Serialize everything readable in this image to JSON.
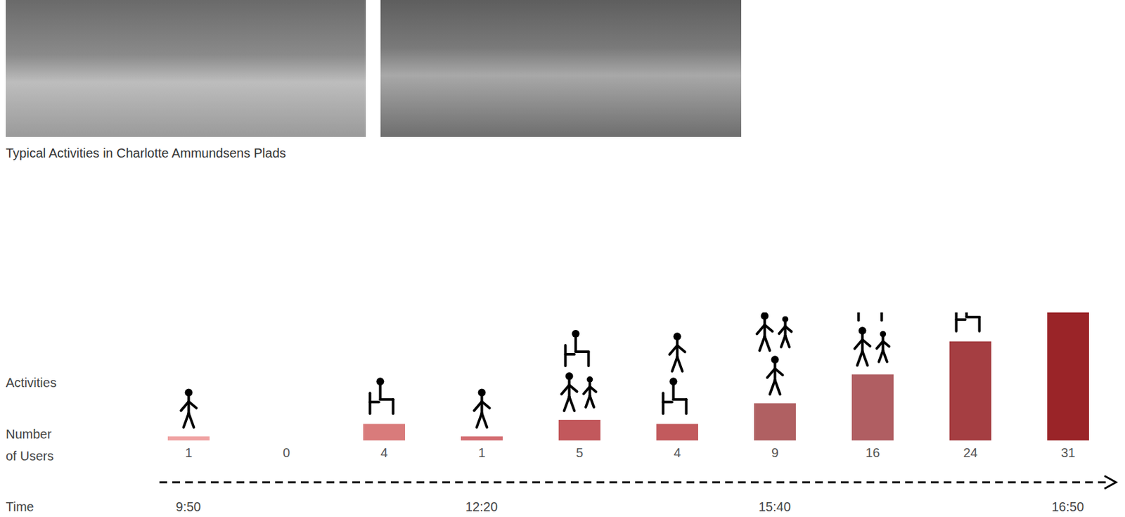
{
  "chart_data": {
    "type": "bar",
    "annotations": [
      "Typical Activities in Charlotte Ammundsens Plads",
      "Activities"
    ],
    "y_label": "Number of Users",
    "x_label": "Time",
    "categories": [
      "9:50",
      null,
      null,
      "12:20",
      null,
      null,
      "15:40",
      null,
      null,
      "16:50"
    ],
    "values": [
      1,
      0,
      4,
      1,
      5,
      4,
      9,
      16,
      24,
      31
    ],
    "colors": [
      "#f0a3a3",
      "#e08a8a",
      "#d97b7b",
      "#d46e72",
      "#c2585c",
      "#c25a5d",
      "#b06062",
      "#b05e62",
      "#a53e42",
      "#9a2428"
    ],
    "ylim": [
      0,
      31
    ],
    "tick_labels": false,
    "data_labels": true
  }
}
